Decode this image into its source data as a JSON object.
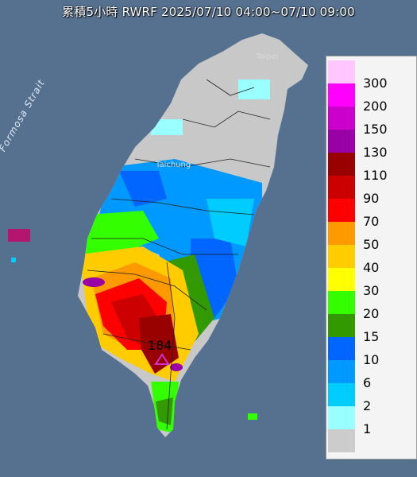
{
  "title": "累積5小時 RWRF 2025/07/10 04:00~07/10 09:00",
  "sea_label": "Formosa Strait",
  "city_labels": [
    "Taipei",
    "Taichung"
  ],
  "max_marker": {
    "value": "184",
    "color": "#cc33cc"
  },
  "legend": {
    "labels": [
      "300",
      "200",
      "150",
      "130",
      "110",
      "90",
      "70",
      "50",
      "40",
      "30",
      "20",
      "15",
      "10",
      "6",
      "2",
      "1"
    ],
    "colors": [
      "#ffc6ff",
      "#ff00ff",
      "#cc00cc",
      "#9900a6",
      "#990000",
      "#cc0000",
      "#ff0000",
      "#ff9900",
      "#ffcc00",
      "#ffff00",
      "#33ff00",
      "#339900",
      "#0066ff",
      "#0099ff",
      "#00ccff",
      "#99ffff",
      "#cccccc"
    ]
  }
}
